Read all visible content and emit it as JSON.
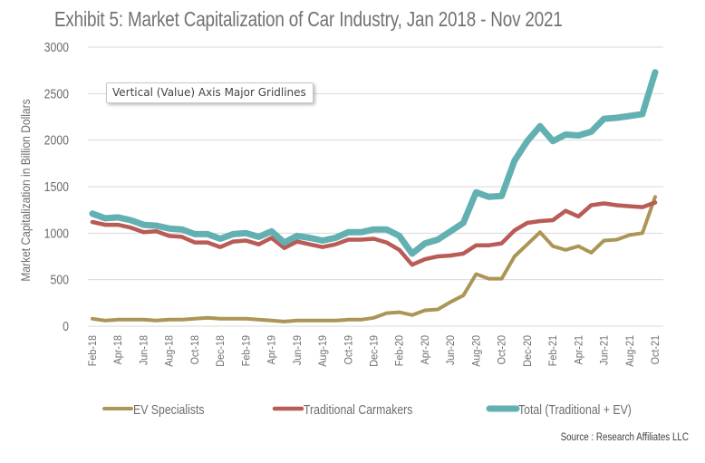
{
  "chart_data": {
    "type": "line",
    "title": "Exhibit 5: Market Capitalization of Car Industry, Jan 2018 - Nov 2021",
    "xlabel": "",
    "ylabel": "Market Capitalization in Billion Dollars",
    "ylim": [
      0,
      3000
    ],
    "yticks": [
      0,
      500,
      1000,
      1500,
      2000,
      2500,
      3000
    ],
    "ytick_labels": [
      "0",
      "500",
      "1000",
      "1500",
      "2000",
      "2500",
      "3000"
    ],
    "grid": true,
    "legend_position": "bottom",
    "x": [
      "Feb-18",
      "Mar-18",
      "Apr-18",
      "May-18",
      "Jun-18",
      "Jul-18",
      "Aug-18",
      "Sep-18",
      "Oct-18",
      "Nov-18",
      "Dec-18",
      "Jan-19",
      "Feb-19",
      "Mar-19",
      "Apr-19",
      "May-19",
      "Jun-19",
      "Jul-19",
      "Aug-19",
      "Sep-19",
      "Oct-19",
      "Nov-19",
      "Dec-19",
      "Jan-20",
      "Feb-20",
      "Mar-20",
      "Apr-20",
      "May-20",
      "Jun-20",
      "Jul-20",
      "Aug-20",
      "Sep-20",
      "Oct-20",
      "Nov-20",
      "Dec-20",
      "Jan-21",
      "Feb-21",
      "Mar-21",
      "Apr-21",
      "May-21",
      "Jun-21",
      "Jul-21",
      "Aug-21",
      "Sep-21",
      "Oct-21"
    ],
    "xtick_labels": [
      "Feb-18",
      "Apr-18",
      "Jun-18",
      "Aug-18",
      "Oct-18",
      "Dec-18",
      "Feb-19",
      "Apr-19",
      "Jun-19",
      "Aug-19",
      "Oct-19",
      "Dec-19",
      "Feb-20",
      "Apr-20",
      "Jun-20",
      "Aug-20",
      "Oct-20",
      "Dec-20",
      "Feb-21",
      "Apr-21",
      "Jun-21",
      "Aug-21",
      "Oct-21"
    ],
    "series": [
      {
        "name": "EV Specialists",
        "color": "#ac9656",
        "values": [
          80,
          60,
          70,
          70,
          70,
          60,
          70,
          70,
          80,
          90,
          80,
          80,
          80,
          70,
          60,
          50,
          60,
          60,
          60,
          60,
          70,
          70,
          90,
          140,
          150,
          120,
          170,
          180,
          260,
          330,
          560,
          510,
          510,
          750,
          880,
          1010,
          860,
          820,
          860,
          790,
          920,
          930,
          980,
          1000,
          1390
        ]
      },
      {
        "name": "Traditional Carmakers",
        "color": "#b95b57",
        "values": [
          1120,
          1090,
          1090,
          1060,
          1010,
          1020,
          970,
          960,
          900,
          900,
          850,
          910,
          920,
          880,
          950,
          840,
          910,
          880,
          850,
          880,
          930,
          930,
          940,
          900,
          820,
          660,
          720,
          750,
          760,
          780,
          870,
          870,
          890,
          1030,
          1110,
          1130,
          1140,
          1240,
          1180,
          1300,
          1320,
          1300,
          1290,
          1280,
          1330
        ]
      },
      {
        "name": "Total (Traditional + EV)",
        "color": "#63b0b2",
        "values": [
          1210,
          1160,
          1170,
          1140,
          1090,
          1080,
          1050,
          1040,
          990,
          990,
          940,
          990,
          1000,
          960,
          1020,
          900,
          970,
          950,
          920,
          950,
          1010,
          1010,
          1040,
          1040,
          970,
          780,
          890,
          930,
          1020,
          1110,
          1440,
          1390,
          1400,
          1780,
          1990,
          2150,
          1990,
          2060,
          2050,
          2090,
          2230,
          2240,
          2260,
          2280,
          2730
        ]
      }
    ],
    "source": "Source : Research Affiliates LLC",
    "tooltip": "Vertical (Value) Axis Major Gridlines"
  }
}
